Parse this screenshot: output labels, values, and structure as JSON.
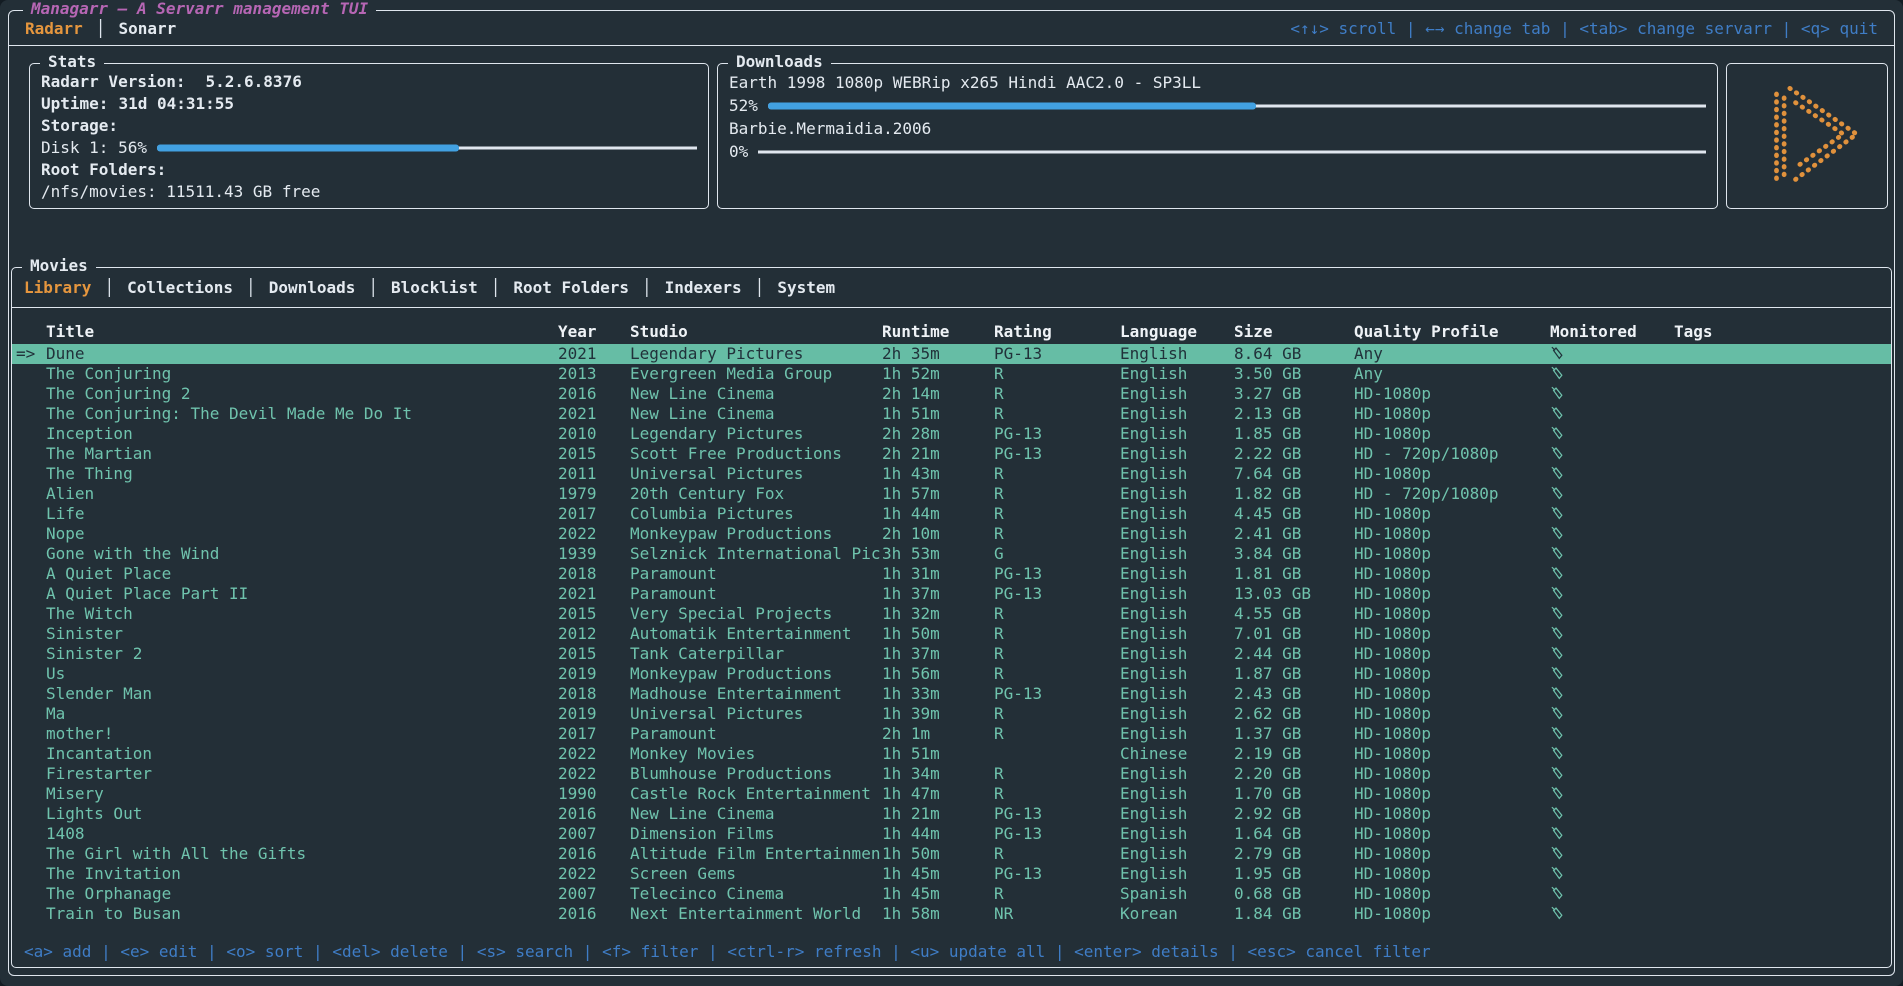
{
  "app": {
    "title": "Managarr — A Servarr management TUI",
    "servarr_tabs": [
      {
        "label": "Radarr",
        "active": true
      },
      {
        "label": "Sonarr",
        "active": false
      }
    ],
    "top_hints": [
      {
        "key": "<↑↓>",
        "action": "scroll"
      },
      {
        "key": "←→",
        "action": "change tab"
      },
      {
        "key": "<tab>",
        "action": "change servarr"
      },
      {
        "key": "<q>",
        "action": "quit"
      }
    ]
  },
  "stats": {
    "title": "Stats",
    "version_label": "Radarr Version:",
    "version_value": "5.2.6.8376",
    "uptime_label": "Uptime:",
    "uptime_value": "31d 04:31:55",
    "storage_label": "Storage:",
    "disk_label": "Disk 1: 56%",
    "disk_percent": 56,
    "root_folders_label": "Root Folders:",
    "root_folder_value": "/nfs/movies: 11511.43 GB free"
  },
  "downloads": {
    "title": "Downloads",
    "items": [
      {
        "name": "Earth 1998 1080p WEBRip x265 Hindi AAC2.0 - SP3LL",
        "percent_label": "52%",
        "percent": 52
      },
      {
        "name": "Barbie.Mermaidia.2006",
        "percent_label": "0%",
        "percent": 0
      }
    ]
  },
  "movies": {
    "title": "Movies",
    "tabs": [
      "Library",
      "Collections",
      "Downloads",
      "Blocklist",
      "Root Folders",
      "Indexers",
      "System"
    ],
    "active_tab": "Library",
    "selected_indicator": "=>",
    "columns": [
      "Title",
      "Year",
      "Studio",
      "Runtime",
      "Rating",
      "Language",
      "Size",
      "Quality Profile",
      "Monitored",
      "Tags"
    ],
    "rows": [
      {
        "selected": true,
        "title": "Dune",
        "year": "2021",
        "studio": "Legendary Pictures",
        "runtime": "2h 35m",
        "rating": "PG-13",
        "language": "English",
        "size": "8.64 GB",
        "quality": "Any",
        "monitored": true,
        "tags": ""
      },
      {
        "selected": false,
        "title": "The Conjuring",
        "year": "2013",
        "studio": "Evergreen Media Group",
        "runtime": "1h 52m",
        "rating": "R",
        "language": "English",
        "size": "3.50 GB",
        "quality": "Any",
        "monitored": true,
        "tags": ""
      },
      {
        "selected": false,
        "title": "The Conjuring 2",
        "year": "2016",
        "studio": "New Line Cinema",
        "runtime": "2h 14m",
        "rating": "R",
        "language": "English",
        "size": "3.27 GB",
        "quality": "HD-1080p",
        "monitored": true,
        "tags": ""
      },
      {
        "selected": false,
        "title": "The Conjuring: The Devil Made Me Do It",
        "year": "2021",
        "studio": "New Line Cinema",
        "runtime": "1h 51m",
        "rating": "R",
        "language": "English",
        "size": "2.13 GB",
        "quality": "HD-1080p",
        "monitored": true,
        "tags": ""
      },
      {
        "selected": false,
        "title": "Inception",
        "year": "2010",
        "studio": "Legendary Pictures",
        "runtime": "2h 28m",
        "rating": "PG-13",
        "language": "English",
        "size": "1.85 GB",
        "quality": "HD-1080p",
        "monitored": true,
        "tags": ""
      },
      {
        "selected": false,
        "title": "The Martian",
        "year": "2015",
        "studio": "Scott Free Productions",
        "runtime": "2h 21m",
        "rating": "PG-13",
        "language": "English",
        "size": "2.22 GB",
        "quality": "HD - 720p/1080p",
        "monitored": true,
        "tags": ""
      },
      {
        "selected": false,
        "title": "The Thing",
        "year": "2011",
        "studio": "Universal Pictures",
        "runtime": "1h 43m",
        "rating": "R",
        "language": "English",
        "size": "7.64 GB",
        "quality": "HD-1080p",
        "monitored": true,
        "tags": ""
      },
      {
        "selected": false,
        "title": "Alien",
        "year": "1979",
        "studio": "20th Century Fox",
        "runtime": "1h 57m",
        "rating": "R",
        "language": "English",
        "size": "1.82 GB",
        "quality": "HD - 720p/1080p",
        "monitored": true,
        "tags": ""
      },
      {
        "selected": false,
        "title": "Life",
        "year": "2017",
        "studio": "Columbia Pictures",
        "runtime": "1h 44m",
        "rating": "R",
        "language": "English",
        "size": "4.45 GB",
        "quality": "HD-1080p",
        "monitored": true,
        "tags": ""
      },
      {
        "selected": false,
        "title": "Nope",
        "year": "2022",
        "studio": "Monkeypaw Productions",
        "runtime": "2h 10m",
        "rating": "R",
        "language": "English",
        "size": "2.41 GB",
        "quality": "HD-1080p",
        "monitored": true,
        "tags": ""
      },
      {
        "selected": false,
        "title": "Gone with the Wind",
        "year": "1939",
        "studio": "Selznick International Pic",
        "runtime": "3h 53m",
        "rating": "G",
        "language": "English",
        "size": "3.84 GB",
        "quality": "HD-1080p",
        "monitored": true,
        "tags": ""
      },
      {
        "selected": false,
        "title": "A Quiet Place",
        "year": "2018",
        "studio": "Paramount",
        "runtime": "1h 31m",
        "rating": "PG-13",
        "language": "English",
        "size": "1.81 GB",
        "quality": "HD-1080p",
        "monitored": true,
        "tags": ""
      },
      {
        "selected": false,
        "title": "A Quiet Place Part II",
        "year": "2021",
        "studio": "Paramount",
        "runtime": "1h 37m",
        "rating": "PG-13",
        "language": "English",
        "size": "13.03 GB",
        "quality": "HD-1080p",
        "monitored": true,
        "tags": ""
      },
      {
        "selected": false,
        "title": "The Witch",
        "year": "2015",
        "studio": "Very Special Projects",
        "runtime": "1h 32m",
        "rating": "R",
        "language": "English",
        "size": "4.55 GB",
        "quality": "HD-1080p",
        "monitored": true,
        "tags": ""
      },
      {
        "selected": false,
        "title": "Sinister",
        "year": "2012",
        "studio": "Automatik Entertainment",
        "runtime": "1h 50m",
        "rating": "R",
        "language": "English",
        "size": "7.01 GB",
        "quality": "HD-1080p",
        "monitored": true,
        "tags": ""
      },
      {
        "selected": false,
        "title": "Sinister 2",
        "year": "2015",
        "studio": "Tank Caterpillar",
        "runtime": "1h 37m",
        "rating": "R",
        "language": "English",
        "size": "2.44 GB",
        "quality": "HD-1080p",
        "monitored": true,
        "tags": ""
      },
      {
        "selected": false,
        "title": "Us",
        "year": "2019",
        "studio": "Monkeypaw Productions",
        "runtime": "1h 56m",
        "rating": "R",
        "language": "English",
        "size": "1.87 GB",
        "quality": "HD-1080p",
        "monitored": true,
        "tags": ""
      },
      {
        "selected": false,
        "title": "Slender Man",
        "year": "2018",
        "studio": "Madhouse Entertainment",
        "runtime": "1h 33m",
        "rating": "PG-13",
        "language": "English",
        "size": "2.43 GB",
        "quality": "HD-1080p",
        "monitored": true,
        "tags": ""
      },
      {
        "selected": false,
        "title": "Ma",
        "year": "2019",
        "studio": "Universal Pictures",
        "runtime": "1h 39m",
        "rating": "R",
        "language": "English",
        "size": "2.62 GB",
        "quality": "HD-1080p",
        "monitored": true,
        "tags": ""
      },
      {
        "selected": false,
        "title": "mother!",
        "year": "2017",
        "studio": "Paramount",
        "runtime": "2h 1m",
        "rating": "R",
        "language": "English",
        "size": "1.37 GB",
        "quality": "HD-1080p",
        "monitored": true,
        "tags": ""
      },
      {
        "selected": false,
        "title": "Incantation",
        "year": "2022",
        "studio": "Monkey Movies",
        "runtime": "1h 51m",
        "rating": "",
        "language": "Chinese",
        "size": "2.19 GB",
        "quality": "HD-1080p",
        "monitored": true,
        "tags": ""
      },
      {
        "selected": false,
        "title": "Firestarter",
        "year": "2022",
        "studio": "Blumhouse Productions",
        "runtime": "1h 34m",
        "rating": "R",
        "language": "English",
        "size": "2.20 GB",
        "quality": "HD-1080p",
        "monitored": true,
        "tags": ""
      },
      {
        "selected": false,
        "title": "Misery",
        "year": "1990",
        "studio": "Castle Rock Entertainment",
        "runtime": "1h 47m",
        "rating": "R",
        "language": "English",
        "size": "1.70 GB",
        "quality": "HD-1080p",
        "monitored": true,
        "tags": ""
      },
      {
        "selected": false,
        "title": "Lights Out",
        "year": "2016",
        "studio": "New Line Cinema",
        "runtime": "1h 21m",
        "rating": "PG-13",
        "language": "English",
        "size": "2.92 GB",
        "quality": "HD-1080p",
        "monitored": true,
        "tags": ""
      },
      {
        "selected": false,
        "title": "1408",
        "year": "2007",
        "studio": "Dimension Films",
        "runtime": "1h 44m",
        "rating": "PG-13",
        "language": "English",
        "size": "1.64 GB",
        "quality": "HD-1080p",
        "monitored": true,
        "tags": ""
      },
      {
        "selected": false,
        "title": "The Girl with All the Gifts",
        "year": "2016",
        "studio": "Altitude Film Entertainmen",
        "runtime": "1h 50m",
        "rating": "R",
        "language": "English",
        "size": "2.79 GB",
        "quality": "HD-1080p",
        "monitored": true,
        "tags": ""
      },
      {
        "selected": false,
        "title": "The Invitation",
        "year": "2022",
        "studio": "Screen Gems",
        "runtime": "1h 45m",
        "rating": "PG-13",
        "language": "English",
        "size": "1.95 GB",
        "quality": "HD-1080p",
        "monitored": true,
        "tags": ""
      },
      {
        "selected": false,
        "title": "The Orphanage",
        "year": "2007",
        "studio": "Telecinco Cinema",
        "runtime": "1h 45m",
        "rating": "R",
        "language": "Spanish",
        "size": "0.68 GB",
        "quality": "HD-1080p",
        "monitored": true,
        "tags": ""
      },
      {
        "selected": false,
        "title": "Train to Busan",
        "year": "2016",
        "studio": "Next Entertainment World",
        "runtime": "1h 58m",
        "rating": "NR",
        "language": "Korean",
        "size": "1.84 GB",
        "quality": "HD-1080p",
        "monitored": true,
        "tags": ""
      }
    ]
  },
  "help_bar": {
    "items": [
      {
        "key": "<a>",
        "action": "add"
      },
      {
        "key": "<e>",
        "action": "edit"
      },
      {
        "key": "<o>",
        "action": "sort"
      },
      {
        "key": "<del>",
        "action": "delete"
      },
      {
        "key": "<s>",
        "action": "search"
      },
      {
        "key": "<f>",
        "action": "filter"
      },
      {
        "key": "<ctrl-r>",
        "action": "refresh"
      },
      {
        "key": "<u>",
        "action": "update all"
      },
      {
        "key": "<enter>",
        "action": "details"
      },
      {
        "key": "<esc>",
        "action": "cancel filter"
      }
    ]
  },
  "icons": {
    "monitored": "tag-icon",
    "logo": "managarr-play-logo"
  },
  "colors": {
    "background": "#232f37",
    "border": "#dfe6ee",
    "accent_orange": "#e5963e",
    "title_magenta": "#b666b4",
    "hint_blue": "#3f7dc6",
    "row_teal": "#6fc3ad",
    "selected_row_bg": "#66bda5",
    "progress_blue": "#42a1e1"
  }
}
